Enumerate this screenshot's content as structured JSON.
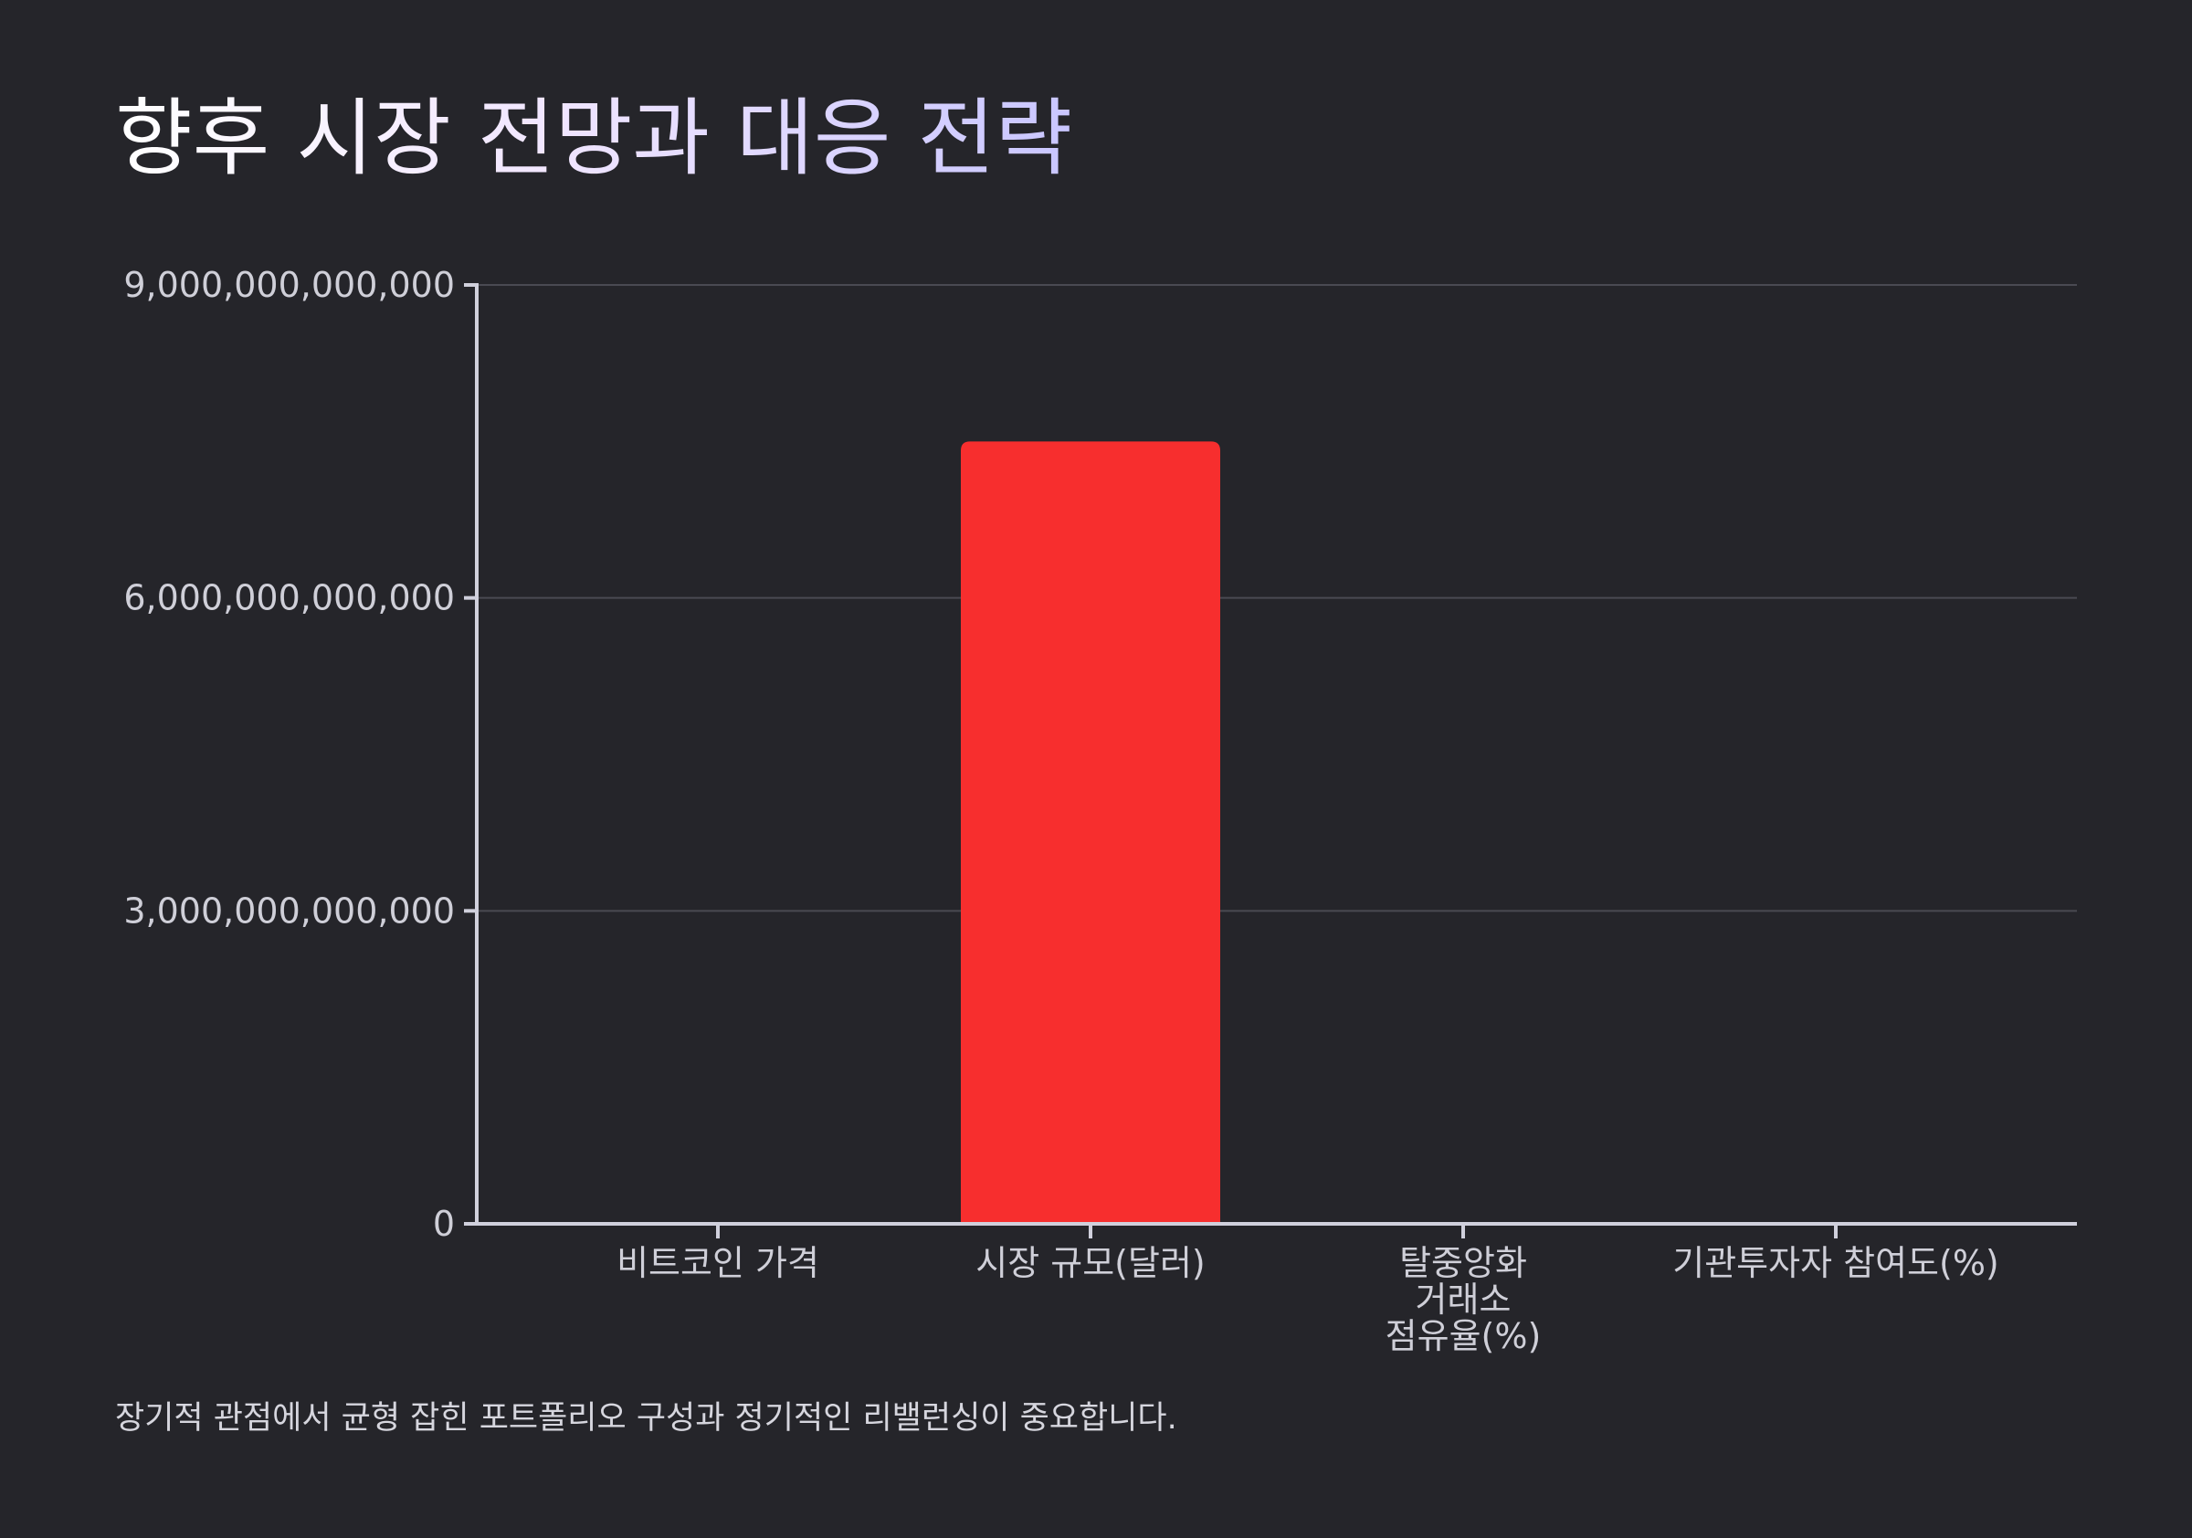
{
  "page": {
    "title": "향후 시장 전망과 대응 전략",
    "caption": "장기적 관점에서 균형 잡힌 포트폴리오 구성과 정기적인 리밸런싱이 중요합니다."
  },
  "colors": {
    "background": "#25252a",
    "bar": "#f72e2e",
    "axis": "#d0d0dc",
    "grid": "#4a4a52",
    "text": "#cfcfd8"
  },
  "chart_data": {
    "type": "bar",
    "title": "",
    "xlabel": "",
    "ylabel": "",
    "categories": [
      "비트코인 가격",
      "시장 규모(달러)",
      "탈중앙화 거래소 점유율(%)",
      "기관투자자 참여도(%)"
    ],
    "category_lines": [
      [
        "비트코인 가격"
      ],
      [
        "시장 규모(달러)"
      ],
      [
        "탈중앙화",
        "거래소",
        "점유율(%)"
      ],
      [
        "기관투자자 참여도(%)"
      ]
    ],
    "values": [
      100000,
      7500000000000,
      25,
      70
    ],
    "ylim": [
      0,
      9000000000000
    ],
    "yticks": [
      0,
      3000000000000,
      6000000000000,
      9000000000000
    ],
    "ytick_labels": [
      "0",
      "3,000,000,000,000",
      "6,000,000,000,000",
      "9,000,000,000,000"
    ],
    "grid": true,
    "legend": "none"
  }
}
